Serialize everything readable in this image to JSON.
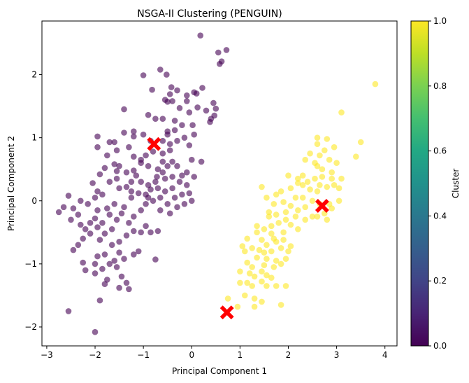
{
  "chart_data": {
    "type": "scatter",
    "title": "NSGA-II Clustering (PENGUIN)",
    "xlabel": "Principal Component 1",
    "ylabel": "Principal Component 2",
    "xlim": [
      -3.1,
      4.25
    ],
    "ylim": [
      -2.3,
      2.85
    ],
    "xticks": [
      -3,
      -2,
      -1,
      0,
      1,
      2,
      3,
      4
    ],
    "yticks": [
      -2,
      -1,
      0,
      1,
      2
    ],
    "grid": false,
    "colorbar": {
      "label": "Cluster",
      "ticks": [
        0.0,
        0.2,
        0.4,
        0.6,
        0.8,
        1.0
      ],
      "tick_labels": [
        "0.0",
        "0.2",
        "0.4",
        "0.6",
        "0.8",
        "1.0"
      ],
      "colormap": "viridis",
      "range": [
        0.0,
        1.0
      ]
    },
    "colors": {
      "cluster_0": "#440154",
      "cluster_1": "#fde725",
      "centroid": "#ff0000"
    },
    "point_alpha": 0.6,
    "series": [
      {
        "cluster": 0,
        "points": [
          [
            0.18,
            2.62
          ],
          [
            0.55,
            2.35
          ],
          [
            0.72,
            2.39
          ],
          [
            0.58,
            2.17
          ],
          [
            0.62,
            2.21
          ],
          [
            -1.0,
            1.99
          ],
          [
            -0.82,
            1.76
          ],
          [
            -0.52,
            2.0
          ],
          [
            -0.65,
            2.08
          ],
          [
            -0.42,
            1.8
          ],
          [
            -0.45,
            1.69
          ],
          [
            -0.3,
            1.75
          ],
          [
            -0.1,
            1.67
          ],
          [
            0.1,
            1.7
          ],
          [
            0.22,
            1.79
          ],
          [
            0.05,
            1.72
          ],
          [
            -0.1,
            1.58
          ],
          [
            -0.25,
            1.47
          ],
          [
            -0.4,
            1.58
          ],
          [
            -0.5,
            1.57
          ],
          [
            0.3,
            1.43
          ],
          [
            0.45,
            1.55
          ],
          [
            0.5,
            1.46
          ],
          [
            0.12,
            1.48
          ],
          [
            -0.55,
            1.6
          ],
          [
            -1.4,
            1.45
          ],
          [
            -0.9,
            1.36
          ],
          [
            -0.6,
            1.3
          ],
          [
            -0.5,
            1.1
          ],
          [
            -0.05,
            1.4
          ],
          [
            -0.35,
            1.27
          ],
          [
            -0.2,
            1.2
          ],
          [
            0.4,
            1.3
          ],
          [
            0.47,
            1.35
          ],
          [
            0.38,
            1.25
          ],
          [
            0.02,
            1.2
          ],
          [
            -0.75,
            1.3
          ],
          [
            -1.2,
            1.1
          ],
          [
            -1.4,
            1.08
          ],
          [
            -1.95,
            1.02
          ],
          [
            -1.7,
            0.93
          ],
          [
            -1.95,
            0.85
          ],
          [
            -1.6,
            0.93
          ],
          [
            -1.2,
            1.02
          ],
          [
            -1.0,
            1.05
          ],
          [
            -0.85,
            0.95
          ],
          [
            -0.6,
            0.95
          ],
          [
            -0.5,
            1.05
          ],
          [
            -0.45,
            0.9
          ],
          [
            -0.35,
            1.12
          ],
          [
            -0.3,
            0.95
          ],
          [
            -0.15,
            1.0
          ],
          [
            -0.05,
            0.88
          ],
          [
            0.05,
            1.05
          ],
          [
            -0.45,
            0.8
          ],
          [
            -0.6,
            0.75
          ],
          [
            -0.8,
            0.78
          ],
          [
            -0.95,
            0.72
          ],
          [
            -1.05,
            0.65
          ],
          [
            -1.2,
            0.7
          ],
          [
            -1.3,
            0.85
          ],
          [
            -1.55,
            0.8
          ],
          [
            -1.75,
            0.72
          ],
          [
            -1.5,
            0.55
          ],
          [
            -1.55,
            0.47
          ],
          [
            -1.6,
            0.58
          ],
          [
            -1.8,
            0.52
          ],
          [
            -1.9,
            0.42
          ],
          [
            -2.05,
            0.28
          ],
          [
            -1.95,
            0.15
          ],
          [
            -1.55,
            0.35
          ],
          [
            -1.35,
            0.45
          ],
          [
            -1.2,
            0.48
          ],
          [
            -1.05,
            0.6
          ],
          [
            -0.9,
            0.55
          ],
          [
            -0.7,
            0.5
          ],
          [
            -0.6,
            0.45
          ],
          [
            -0.5,
            0.55
          ],
          [
            -0.4,
            0.62
          ],
          [
            -0.3,
            0.55
          ],
          [
            -0.2,
            0.4
          ],
          [
            -0.4,
            0.38
          ],
          [
            -0.55,
            0.35
          ],
          [
            -0.75,
            0.3
          ],
          [
            -0.9,
            0.25
          ],
          [
            -1.15,
            0.4
          ],
          [
            -1.25,
            0.3
          ],
          [
            -1.35,
            0.22
          ],
          [
            -1.5,
            0.2
          ],
          [
            -1.7,
            0.3
          ],
          [
            -1.85,
            0.1
          ],
          [
            -2.0,
            0.05
          ],
          [
            -2.15,
            -0.05
          ],
          [
            -2.3,
            0.0
          ],
          [
            -2.45,
            -0.12
          ],
          [
            -2.65,
            -0.1
          ],
          [
            -2.75,
            -0.18
          ],
          [
            -2.55,
            0.08
          ],
          [
            -2.35,
            -0.22
          ],
          [
            -2.5,
            -0.3
          ],
          [
            -2.3,
            -0.38
          ],
          [
            -2.2,
            -0.45
          ],
          [
            -2.1,
            -0.35
          ],
          [
            -2.0,
            -0.28
          ],
          [
            -1.95,
            -0.15
          ],
          [
            -1.75,
            -0.12
          ],
          [
            -1.6,
            -0.05
          ],
          [
            -1.4,
            -0.1
          ],
          [
            -1.25,
            0.05
          ],
          [
            -1.1,
            0.12
          ],
          [
            -0.95,
            0.1
          ],
          [
            -0.85,
            0.18
          ],
          [
            -0.7,
            0.2
          ],
          [
            -0.55,
            0.15
          ],
          [
            -0.4,
            0.2
          ],
          [
            -0.2,
            0.1
          ],
          [
            -0.1,
            0.25
          ],
          [
            0.05,
            0.38
          ],
          [
            -0.1,
            0.45
          ],
          [
            0.2,
            0.62
          ],
          [
            0.0,
            0.65
          ],
          [
            -0.05,
            0.12
          ],
          [
            -0.35,
            0.05
          ],
          [
            -0.5,
            -0.05
          ],
          [
            -0.65,
            0.05
          ],
          [
            -0.8,
            0.0
          ],
          [
            -0.95,
            -0.05
          ],
          [
            -1.05,
            -0.15
          ],
          [
            -1.2,
            -0.25
          ],
          [
            -1.3,
            -0.35
          ],
          [
            -1.45,
            -0.2
          ],
          [
            -1.55,
            -0.3
          ],
          [
            -1.7,
            -0.22
          ],
          [
            -1.85,
            -0.35
          ],
          [
            -1.95,
            -0.42
          ],
          [
            -2.1,
            -0.52
          ],
          [
            -2.25,
            -0.6
          ],
          [
            -2.35,
            -0.7
          ],
          [
            -2.45,
            -0.78
          ],
          [
            -2.25,
            -0.98
          ],
          [
            -2.2,
            -1.1
          ],
          [
            -2.0,
            -1.0
          ],
          [
            -1.95,
            -0.88
          ],
          [
            -1.8,
            -0.85
          ],
          [
            -1.65,
            -0.7
          ],
          [
            -1.5,
            -0.65
          ],
          [
            -1.35,
            -0.55
          ],
          [
            -1.2,
            -0.48
          ],
          [
            -1.05,
            -0.5
          ],
          [
            -0.95,
            -0.4
          ],
          [
            -0.85,
            -0.5
          ],
          [
            -0.7,
            -0.48
          ],
          [
            -1.8,
            -0.52
          ],
          [
            -1.9,
            -0.62
          ],
          [
            -1.65,
            -0.45
          ],
          [
            -1.5,
            -0.82
          ],
          [
            -1.6,
            -0.95
          ],
          [
            -1.7,
            -1.0
          ],
          [
            -1.85,
            -1.08
          ],
          [
            -2.0,
            -1.15
          ],
          [
            -1.55,
            -1.05
          ],
          [
            -1.45,
            -1.2
          ],
          [
            -1.35,
            -1.3
          ],
          [
            -1.5,
            -1.38
          ],
          [
            -1.75,
            -1.25
          ],
          [
            -1.8,
            -1.32
          ],
          [
            -1.3,
            -1.4
          ],
          [
            -1.4,
            -0.92
          ],
          [
            -1.2,
            -0.85
          ],
          [
            -1.1,
            -0.8
          ],
          [
            -0.75,
            -0.93
          ],
          [
            -1.9,
            -1.58
          ],
          [
            -2.55,
            -1.75
          ],
          [
            -2.0,
            -2.08
          ],
          [
            -0.65,
            -0.15
          ],
          [
            -0.45,
            -0.2
          ],
          [
            -0.3,
            -0.1
          ],
          [
            -0.15,
            -0.05
          ],
          [
            0.0,
            0.0
          ],
          [
            -0.25,
            0.3
          ],
          [
            -0.6,
            0.62
          ],
          [
            -0.72,
            0.38
          ],
          [
            -1.05,
            0.3
          ],
          [
            -1.25,
            0.15
          ],
          [
            -0.9,
            0.05
          ]
        ]
      },
      {
        "cluster": 1,
        "points": [
          [
            3.8,
            1.85
          ],
          [
            3.1,
            1.4
          ],
          [
            3.5,
            0.93
          ],
          [
            3.4,
            0.7
          ],
          [
            2.6,
            1.0
          ],
          [
            2.8,
            0.98
          ],
          [
            2.6,
            0.9
          ],
          [
            2.75,
            0.8
          ],
          [
            2.95,
            0.85
          ],
          [
            2.45,
            0.75
          ],
          [
            2.65,
            0.72
          ],
          [
            2.85,
            0.65
          ],
          [
            3.0,
            0.6
          ],
          [
            2.55,
            0.6
          ],
          [
            2.35,
            0.65
          ],
          [
            2.7,
            0.5
          ],
          [
            2.9,
            0.45
          ],
          [
            2.7,
            0.38
          ],
          [
            2.55,
            0.35
          ],
          [
            2.4,
            0.3
          ],
          [
            3.1,
            0.35
          ],
          [
            2.95,
            0.25
          ],
          [
            2.8,
            0.22
          ],
          [
            2.6,
            0.15
          ],
          [
            2.45,
            0.18
          ],
          [
            2.3,
            0.25
          ],
          [
            2.2,
            0.28
          ],
          [
            2.05,
            0.2
          ],
          [
            2.0,
            0.4
          ],
          [
            2.15,
            0.05
          ],
          [
            2.3,
            0.05
          ],
          [
            2.5,
            0.0
          ],
          [
            2.65,
            -0.05
          ],
          [
            2.85,
            -0.05
          ],
          [
            3.05,
            0.0
          ],
          [
            2.9,
            -0.12
          ],
          [
            2.75,
            -0.2
          ],
          [
            2.6,
            -0.25
          ],
          [
            2.8,
            -0.3
          ],
          [
            2.35,
            -0.1
          ],
          [
            2.2,
            -0.15
          ],
          [
            2.05,
            -0.08
          ],
          [
            1.9,
            -0.02
          ],
          [
            1.7,
            -0.05
          ],
          [
            1.55,
            0.05
          ],
          [
            1.75,
            0.1
          ],
          [
            1.85,
            0.15
          ],
          [
            1.45,
            0.22
          ],
          [
            1.95,
            -0.18
          ],
          [
            1.75,
            -0.22
          ],
          [
            1.6,
            -0.18
          ],
          [
            1.95,
            -0.3
          ],
          [
            1.8,
            -0.35
          ],
          [
            1.65,
            -0.4
          ],
          [
            2.05,
            -0.38
          ],
          [
            2.2,
            -0.45
          ],
          [
            2.35,
            -0.3
          ],
          [
            2.5,
            -0.25
          ],
          [
            1.5,
            -0.45
          ],
          [
            1.35,
            -0.5
          ],
          [
            1.65,
            -0.52
          ],
          [
            1.9,
            -0.5
          ],
          [
            1.45,
            -0.62
          ],
          [
            1.55,
            -0.7
          ],
          [
            1.75,
            -0.65
          ],
          [
            1.9,
            -0.62
          ],
          [
            2.05,
            -0.72
          ],
          [
            1.4,
            -0.78
          ],
          [
            1.5,
            -0.82
          ],
          [
            1.65,
            -0.8
          ],
          [
            1.85,
            -0.75
          ],
          [
            2.0,
            -0.8
          ],
          [
            1.15,
            -0.6
          ],
          [
            1.25,
            -0.75
          ],
          [
            1.05,
            -0.72
          ],
          [
            1.1,
            -0.8
          ],
          [
            1.35,
            -0.9
          ],
          [
            1.55,
            -0.92
          ],
          [
            1.75,
            -0.95
          ],
          [
            1.95,
            -0.92
          ],
          [
            1.15,
            -0.98
          ],
          [
            1.25,
            -1.05
          ],
          [
            1.5,
            -1.02
          ],
          [
            1.7,
            -1.05
          ],
          [
            1.85,
            -1.0
          ],
          [
            1.45,
            -1.12
          ],
          [
            1.55,
            -1.18
          ],
          [
            1.0,
            -1.12
          ],
          [
            1.2,
            -1.15
          ],
          [
            1.3,
            -1.2
          ],
          [
            1.65,
            -1.22
          ],
          [
            1.45,
            -1.28
          ],
          [
            1.55,
            -1.35
          ],
          [
            1.15,
            -1.3
          ],
          [
            1.25,
            -1.35
          ],
          [
            1.0,
            -1.3
          ],
          [
            1.75,
            -1.35
          ],
          [
            1.95,
            -1.35
          ],
          [
            1.1,
            -1.5
          ],
          [
            1.3,
            -1.55
          ],
          [
            1.45,
            -1.6
          ],
          [
            0.95,
            -1.68
          ],
          [
            0.75,
            -1.55
          ],
          [
            1.3,
            -1.68
          ],
          [
            1.85,
            -1.65
          ],
          [
            2.3,
            0.4
          ],
          [
            2.6,
            0.55
          ],
          [
            3.05,
            0.2
          ],
          [
            2.2,
            0.35
          ],
          [
            2.9,
            0.35
          ],
          [
            2.65,
            0.25
          ],
          [
            1.6,
            -0.25
          ],
          [
            1.35,
            -0.4
          ],
          [
            1.7,
            -0.6
          ],
          [
            2.15,
            -0.25
          ]
        ]
      }
    ],
    "centroids": [
      [
        -0.78,
        0.9
      ],
      [
        2.7,
        -0.08
      ],
      [
        0.73,
        -1.77
      ]
    ]
  }
}
